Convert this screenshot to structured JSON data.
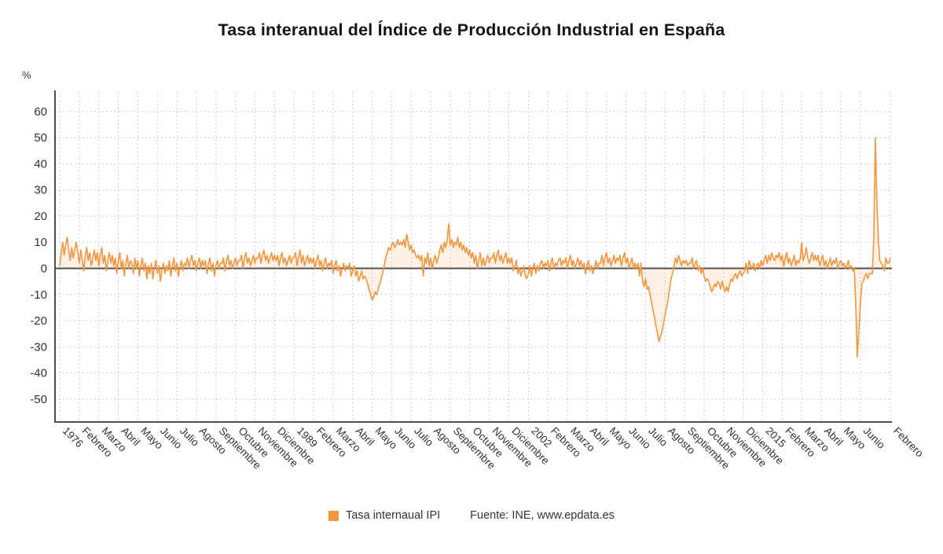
{
  "title": "Tasa interanual del Índice de Producción Industrial en España",
  "y_unit": "%",
  "legend": {
    "series_label": "Tasa internaual IPI",
    "source_prefix": "Fuente: INE, ",
    "source_site": "www.epdata.es"
  },
  "colors": {
    "line": "#F5953D",
    "axis": "#4D4D4D",
    "grid": "#CCCCCC",
    "text": "#333333",
    "title": "#141414"
  },
  "chart_data": {
    "type": "line",
    "title": "Tasa interanual del Índice de Producción Industrial en España",
    "xlabel": "",
    "ylabel": "%",
    "grid": "dashed-both",
    "legend_position": "bottom",
    "y_ticks": [
      60,
      50,
      40,
      30,
      20,
      10,
      0,
      -10,
      -20,
      -30,
      -40,
      -50
    ],
    "ylim": [
      -58,
      67
    ],
    "x_ticks": [
      {
        "label": "1976",
        "index": 0
      },
      {
        "label": "Febrero",
        "index": 13
      },
      {
        "label": "Marzo",
        "index": 26
      },
      {
        "label": "Abril",
        "index": 39
      },
      {
        "label": "Mayo",
        "index": 52
      },
      {
        "label": "Junio",
        "index": 65
      },
      {
        "label": "Julio",
        "index": 78
      },
      {
        "label": "Agosto",
        "index": 91
      },
      {
        "label": "Septiembre",
        "index": 104
      },
      {
        "label": "Octubre",
        "index": 117
      },
      {
        "label": "Noviembre",
        "index": 130
      },
      {
        "label": "Diciembre",
        "index": 143
      },
      {
        "label": "1989",
        "index": 156
      },
      {
        "label": "Febrero",
        "index": 169
      },
      {
        "label": "Marzo",
        "index": 182
      },
      {
        "label": "Abril",
        "index": 195
      },
      {
        "label": "Mayo",
        "index": 208
      },
      {
        "label": "Junio",
        "index": 221
      },
      {
        "label": "Julio",
        "index": 234
      },
      {
        "label": "Agosto",
        "index": 247
      },
      {
        "label": "Septiembre",
        "index": 260
      },
      {
        "label": "Octubre",
        "index": 273
      },
      {
        "label": "Noviembre",
        "index": 286
      },
      {
        "label": "Diciembre",
        "index": 299
      },
      {
        "label": "2002",
        "index": 312
      },
      {
        "label": "Febrero",
        "index": 325
      },
      {
        "label": "Marzo",
        "index": 338
      },
      {
        "label": "Abril",
        "index": 351
      },
      {
        "label": "Mayo",
        "index": 364
      },
      {
        "label": "Junio",
        "index": 377
      },
      {
        "label": "Julio",
        "index": 390
      },
      {
        "label": "Agosto",
        "index": 403
      },
      {
        "label": "Septiembre",
        "index": 416
      },
      {
        "label": "Octubre",
        "index": 429
      },
      {
        "label": "Noviembre",
        "index": 442
      },
      {
        "label": "Diciembre",
        "index": 455
      },
      {
        "label": "2015",
        "index": 468
      },
      {
        "label": "Febrero",
        "index": 481
      },
      {
        "label": "Marzo",
        "index": 494
      },
      {
        "label": "Abril",
        "index": 507
      },
      {
        "label": "Mayo",
        "index": 520
      },
      {
        "label": "Junio",
        "index": 533
      },
      {
        "label": "Febrero",
        "index": 553
      }
    ],
    "series": [
      {
        "name": "Tasa internaual IPI",
        "frequency": "monthly",
        "values": [
          1,
          6,
          10,
          5,
          9,
          12,
          7,
          3,
          8,
          4,
          7,
          10,
          6,
          2,
          7,
          3,
          -1,
          5,
          8,
          3,
          6,
          1,
          4,
          7,
          3,
          6,
          1,
          5,
          8,
          2,
          5,
          -1,
          3,
          6,
          2,
          5,
          1,
          4,
          -2,
          3,
          6,
          0,
          3,
          -3,
          2,
          5,
          0,
          3,
          2,
          -2,
          4,
          0,
          3,
          -3,
          1,
          4,
          -1,
          2,
          -4,
          1,
          -2,
          2,
          -4,
          0,
          3,
          -2,
          1,
          -5,
          -1,
          2,
          -2,
          1,
          -1,
          3,
          -3,
          1,
          4,
          -1,
          2,
          -3,
          0,
          3,
          -1,
          2,
          1,
          4,
          0,
          3,
          5,
          1,
          3,
          -1,
          2,
          4,
          0,
          3,
          1,
          3,
          -2,
          2,
          4,
          -1,
          2,
          -3,
          1,
          3,
          0,
          2,
          2,
          4,
          -1,
          3,
          5,
          1,
          3,
          0,
          2,
          4,
          1,
          3,
          3,
          5,
          0,
          4,
          6,
          2,
          4,
          1,
          3,
          5,
          2,
          4,
          4,
          6,
          2,
          5,
          7,
          3,
          5,
          2,
          4,
          6,
          3,
          5,
          3,
          5,
          1,
          4,
          6,
          2,
          4,
          1,
          3,
          5,
          2,
          4,
          4,
          6,
          1,
          4,
          7,
          2,
          5,
          1,
          3,
          5,
          2,
          4,
          2,
          4,
          0,
          3,
          5,
          1,
          3,
          -1,
          2,
          4,
          0,
          2,
          1,
          3,
          -2,
          1,
          3,
          -1,
          1,
          -3,
          0,
          2,
          -1,
          1,
          0,
          2,
          -3,
          -1,
          1,
          -3,
          -1,
          -5,
          -3,
          -1,
          -4,
          -3,
          -4,
          -6,
          -8,
          -10,
          -12,
          -11,
          -9,
          -10,
          -8,
          -6,
          -4,
          -2,
          1,
          4,
          6,
          8,
          7,
          9,
          10,
          8,
          9,
          11,
          9,
          10,
          9,
          11,
          8,
          13,
          10,
          7,
          9,
          6,
          7,
          5,
          4,
          5,
          3,
          5,
          -3,
          4,
          2,
          6,
          1,
          4,
          0,
          3,
          5,
          2,
          4,
          7,
          9,
          6,
          10,
          8,
          11,
          17,
          9,
          11,
          8,
          10,
          9,
          12,
          8,
          10,
          7,
          9,
          6,
          8,
          5,
          7,
          4,
          6,
          2,
          5,
          0,
          3,
          6,
          1,
          4,
          1,
          3,
          5,
          2,
          4,
          4,
          6,
          2,
          5,
          7,
          3,
          5,
          2,
          4,
          6,
          2,
          4,
          2,
          4,
          -1,
          1,
          3,
          -2,
          0,
          -3,
          -1,
          1,
          -3,
          -4,
          -2,
          1,
          -3,
          0,
          2,
          -2,
          1,
          -1,
          2,
          3,
          0,
          2,
          1,
          3,
          -1,
          2,
          4,
          0,
          2,
          1,
          3,
          4,
          1,
          3,
          2,
          4,
          0,
          3,
          5,
          1,
          3,
          0,
          2,
          4,
          1,
          3,
          0,
          2,
          -2,
          1,
          3,
          -1,
          1,
          -2,
          0,
          3,
          0,
          2,
          2,
          5,
          1,
          4,
          6,
          2,
          4,
          1,
          3,
          5,
          2,
          4,
          3,
          5,
          1,
          4,
          6,
          2,
          4,
          0,
          2,
          4,
          0,
          2,
          0,
          2,
          -3,
          2,
          -5,
          -7,
          -4,
          -8,
          -7,
          -10,
          -13,
          -16,
          -19,
          -22,
          -25,
          -28,
          -26,
          -24,
          -21,
          -18,
          -15,
          -12,
          -8,
          -4,
          -2,
          1,
          4,
          2,
          5,
          3,
          1,
          3,
          2,
          3,
          1,
          2,
          2,
          4,
          0,
          2,
          3,
          -1,
          1,
          -2,
          0,
          -3,
          -5,
          -4,
          -5,
          -7,
          -9,
          -8,
          -6,
          -7,
          -5,
          -6,
          -8,
          -5,
          -7,
          -9,
          -7,
          -9,
          -6,
          -4,
          -5,
          -3,
          -2,
          -4,
          -2,
          -1,
          -3,
          -2,
          -1,
          2,
          -2,
          3,
          1,
          0,
          2,
          -1,
          1,
          2,
          0,
          3,
          1,
          3,
          5,
          2,
          5,
          3,
          6,
          4,
          3,
          5,
          4,
          6,
          3,
          5,
          1,
          4,
          6,
          2,
          4,
          1,
          3,
          5,
          1,
          3,
          2,
          4,
          10,
          3,
          5,
          8,
          4,
          2,
          4,
          6,
          3,
          5,
          3,
          5,
          1,
          3,
          5,
          1,
          3,
          0,
          2,
          4,
          1,
          3,
          2,
          4,
          0,
          2,
          3,
          1,
          2,
          0,
          1,
          3,
          0,
          1,
          -1,
          0,
          -14,
          -34,
          -24,
          -14,
          -6,
          -5,
          -3,
          -2,
          -4,
          -2,
          -2,
          -2,
          12,
          50,
          26,
          11,
          3,
          2,
          1,
          -1,
          4,
          2,
          2,
          4
        ]
      }
    ]
  }
}
